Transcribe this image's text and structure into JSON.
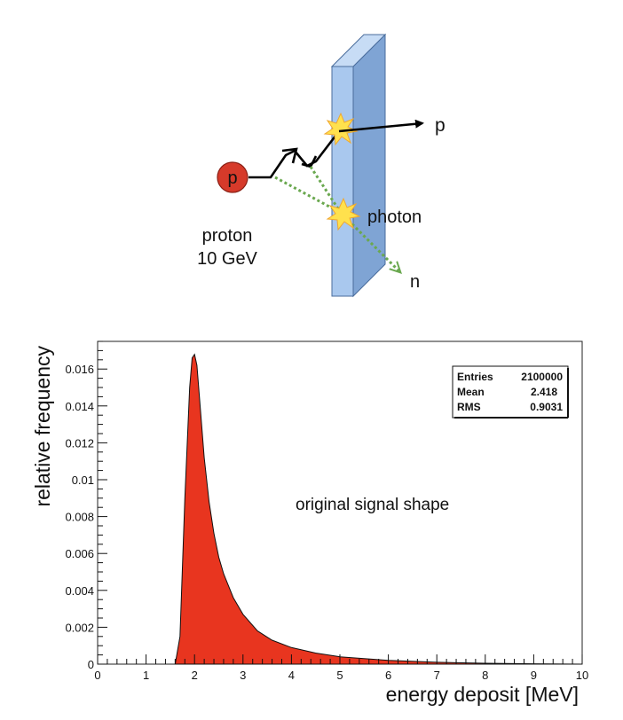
{
  "diagram": {
    "incoming_particle": "p",
    "incoming_label_line1": "proton",
    "incoming_label_line2": "10 GeV",
    "outgoing_proton": "p",
    "photon_label": "photon",
    "neutron_label": "n",
    "colors": {
      "particle": "#d63a2a",
      "slab_front": "#a9c8ee",
      "slab_side": "#7fa4d4",
      "neutral_track": "#6aa84f",
      "flash": "#ffe14d"
    }
  },
  "chart_data": {
    "type": "area",
    "xlabel": "energy deposit [MeV]",
    "ylabel": "relative frequency",
    "xlim": [
      0,
      10
    ],
    "ylim": [
      0,
      0.0175
    ],
    "x_ticks": [
      "0",
      "1",
      "2",
      "3",
      "4",
      "5",
      "6",
      "7",
      "8",
      "9",
      "10"
    ],
    "y_ticks": [
      "0",
      "0.002",
      "0.004",
      "0.006",
      "0.008",
      "0.01",
      "0.012",
      "0.014",
      "0.016"
    ],
    "x": [
      1.6,
      1.7,
      1.8,
      1.9,
      1.95,
      2.0,
      2.05,
      2.1,
      2.2,
      2.3,
      2.4,
      2.5,
      2.6,
      2.8,
      3.0,
      3.3,
      3.6,
      4.0,
      4.5,
      5.0,
      5.5,
      6.0,
      7.0,
      8.0,
      9.0,
      10.0
    ],
    "y": [
      0,
      0.0015,
      0.009,
      0.015,
      0.0166,
      0.0168,
      0.0162,
      0.0145,
      0.0112,
      0.0088,
      0.0071,
      0.0058,
      0.0049,
      0.0036,
      0.0027,
      0.0018,
      0.0013,
      0.0009,
      0.0006,
      0.0004,
      0.0003,
      0.0002,
      0.0001,
      5e-05,
      2e-05,
      0.0
    ],
    "annotation": "original signal shape",
    "stats": {
      "entries_label": "Entries",
      "entries_value": "2100000",
      "mean_label": "Mean",
      "mean_value": "2.418",
      "rms_label": "RMS",
      "rms_value": "0.9031"
    },
    "fill_color": "#e8351f",
    "grid": false,
    "legend": "top-right"
  }
}
